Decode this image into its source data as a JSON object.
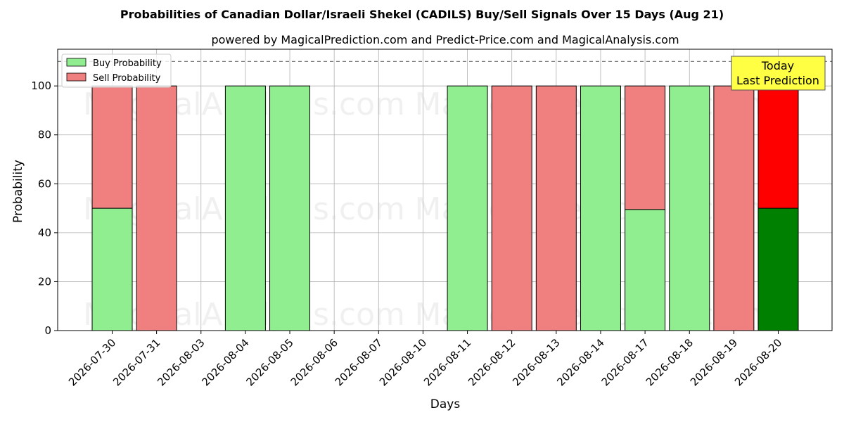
{
  "title": "Probabilities of Canadian Dollar/Israeli Shekel (CADILS) Buy/Sell Signals Over 15 Days (Aug 21)",
  "subtitle": "powered by MagicalPrediction.com and Predict-Price.com and MagicalAnalysis.com",
  "watermarks": [
    "MagicalAnalysis.com",
    "MagicalPrediction.com"
  ],
  "annotation": {
    "line1": "Today",
    "line2": "Last Prediction"
  },
  "colors": {
    "buy": "#90ee90",
    "sell": "#f08080",
    "buy_today": "#008000",
    "sell_today": "#ff0000",
    "annotation_bg": "#ffff44"
  },
  "chart_data": {
    "type": "bar",
    "stacked": true,
    "title": "Probabilities of Canadian Dollar/Israeli Shekel (CADILS) Buy/Sell Signals Over 15 Days (Aug 21)",
    "xlabel": "Days",
    "ylabel": "Probability",
    "ylim": [
      0,
      115
    ],
    "yticks": [
      0,
      20,
      40,
      60,
      80,
      100
    ],
    "reference_line": 110,
    "grid": true,
    "legend_position": "top-left",
    "categories": [
      "2026-07-30",
      "2026-07-31",
      "2026-08-03",
      "2026-08-04",
      "2026-08-05",
      "2026-08-06",
      "2026-08-07",
      "2026-08-10",
      "2026-08-11",
      "2026-08-12",
      "2026-08-13",
      "2026-08-14",
      "2026-08-17",
      "2026-08-18",
      "2026-08-19",
      "2026-08-20"
    ],
    "series": [
      {
        "name": "Buy Probability",
        "values": [
          50,
          0,
          0,
          100,
          100,
          0,
          0,
          0,
          100,
          0,
          0,
          100,
          49.5,
          100,
          0,
          50
        ]
      },
      {
        "name": "Sell Probability",
        "values": [
          50,
          100,
          0,
          0,
          0,
          0,
          0,
          0,
          0,
          100,
          100,
          0,
          50.5,
          0,
          100,
          50
        ]
      }
    ]
  }
}
